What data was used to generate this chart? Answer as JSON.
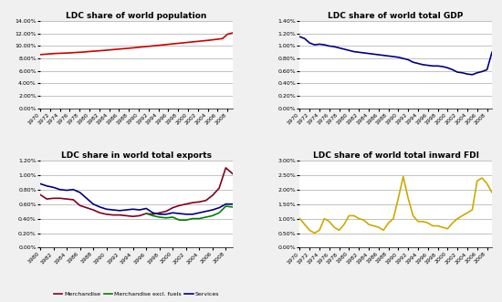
{
  "pop_years": [
    1970,
    1971,
    1972,
    1973,
    1974,
    1975,
    1976,
    1977,
    1978,
    1979,
    1980,
    1981,
    1982,
    1983,
    1984,
    1985,
    1986,
    1987,
    1988,
    1989,
    1990,
    1991,
    1992,
    1993,
    1994,
    1995,
    1996,
    1997,
    1998,
    1999,
    2000,
    2001,
    2002,
    2003,
    2004,
    2005,
    2006,
    2007,
    2008,
    2009
  ],
  "pop_values": [
    0.0862,
    0.0868,
    0.0874,
    0.088,
    0.0883,
    0.0886,
    0.089,
    0.0895,
    0.09,
    0.0905,
    0.0912,
    0.0918,
    0.0924,
    0.093,
    0.0937,
    0.0944,
    0.0951,
    0.0958,
    0.0965,
    0.0972,
    0.098,
    0.0988,
    0.0995,
    0.1003,
    0.1011,
    0.1019,
    0.1027,
    0.1035,
    0.1043,
    0.1051,
    0.1059,
    0.1067,
    0.1075,
    0.1083,
    0.1091,
    0.11,
    0.111,
    0.112,
    0.119,
    0.121
  ],
  "gdp_years": [
    1970,
    1971,
    1972,
    1973,
    1974,
    1975,
    1976,
    1977,
    1978,
    1979,
    1980,
    1981,
    1982,
    1983,
    1984,
    1985,
    1986,
    1987,
    1988,
    1989,
    1990,
    1991,
    1992,
    1993,
    1994,
    1995,
    1996,
    1997,
    1998,
    1999,
    2000,
    2001,
    2002,
    2003,
    2004,
    2005,
    2006,
    2007,
    2008,
    2009
  ],
  "gdp_values": [
    0.0115,
    0.0112,
    0.0105,
    0.0102,
    0.0103,
    0.0102,
    0.01,
    0.0099,
    0.0097,
    0.0095,
    0.0093,
    0.0091,
    0.009,
    0.0089,
    0.0088,
    0.0087,
    0.0086,
    0.0085,
    0.0084,
    0.0083,
    0.0082,
    0.008,
    0.0078,
    0.0074,
    0.0072,
    0.007,
    0.0069,
    0.0068,
    0.0068,
    0.0067,
    0.0065,
    0.0062,
    0.0058,
    0.0057,
    0.0055,
    0.0054,
    0.0057,
    0.0059,
    0.0062,
    0.009
  ],
  "exp_years": [
    1980,
    1981,
    1982,
    1983,
    1984,
    1985,
    1986,
    1987,
    1988,
    1989,
    1990,
    1991,
    1992,
    1993,
    1994,
    1995,
    1996,
    1997,
    1998,
    1999,
    2000,
    2001,
    2002,
    2003,
    2004,
    2005,
    2006,
    2007,
    2008,
    2009
  ],
  "exp_merch": [
    0.0073,
    0.0067,
    0.0068,
    0.0068,
    0.0067,
    0.0066,
    0.0058,
    0.0055,
    0.0052,
    0.0048,
    0.0046,
    0.0045,
    0.0045,
    0.0044,
    0.0043,
    0.0044,
    0.0047,
    0.0046,
    0.0048,
    0.005,
    0.0055,
    0.0058,
    0.006,
    0.0062,
    0.0063,
    0.0065,
    0.0072,
    0.0082,
    0.011,
    0.0102
  ],
  "exp_merch_excl": [
    null,
    null,
    null,
    null,
    null,
    null,
    null,
    null,
    null,
    null,
    null,
    null,
    null,
    null,
    null,
    null,
    0.0047,
    0.0044,
    0.0042,
    0.0041,
    0.0042,
    0.0038,
    0.0038,
    0.004,
    0.004,
    0.0042,
    0.0044,
    0.0048,
    0.0057,
    0.0056
  ],
  "exp_services": [
    0.0088,
    0.0085,
    0.0083,
    0.008,
    0.0079,
    0.008,
    0.0076,
    0.0068,
    0.006,
    0.0056,
    0.0053,
    0.0052,
    0.0051,
    0.0052,
    0.0053,
    0.0052,
    0.0054,
    0.0048,
    0.0046,
    0.0046,
    0.0048,
    0.0047,
    0.0046,
    0.0046,
    0.0048,
    0.005,
    0.0052,
    0.0055,
    0.006,
    0.006
  ],
  "fdi_years": [
    1970,
    1971,
    1972,
    1973,
    1974,
    1975,
    1976,
    1977,
    1978,
    1979,
    1980,
    1981,
    1982,
    1983,
    1984,
    1985,
    1986,
    1987,
    1988,
    1989,
    1990,
    1991,
    1992,
    1993,
    1994,
    1995,
    1996,
    1997,
    1998,
    1999,
    2000,
    2001,
    2002,
    2003,
    2004,
    2005,
    2006,
    2007,
    2008,
    2009
  ],
  "fdi_values": [
    0.01,
    0.008,
    0.006,
    0.005,
    0.006,
    0.01,
    0.009,
    0.007,
    0.006,
    0.008,
    0.011,
    0.011,
    0.01,
    0.0095,
    0.008,
    0.0075,
    0.007,
    0.006,
    0.0085,
    0.01,
    0.017,
    0.0245,
    0.017,
    0.011,
    0.009,
    0.009,
    0.0085,
    0.0075,
    0.0075,
    0.007,
    0.0065,
    0.0085,
    0.01,
    0.011,
    0.012,
    0.013,
    0.023,
    0.024,
    0.022,
    0.019
  ],
  "pop_color": "#cc0000",
  "gdp_color": "#000080",
  "exp_merch_color": "#800020",
  "exp_merch_excl_color": "#008000",
  "exp_services_color": "#000080",
  "fdi_color": "#ccaa00",
  "bg_color": "#f0f0f0",
  "plot_bg": "#ffffff",
  "title1": "LDC share of world population",
  "title2": "LDC share of world total GDP",
  "title3": "LDC share in world total exports",
  "title4": "LDC share of world total inward FDI",
  "legend3": [
    "Merchandise",
    "Merchandise excl. fuels",
    "Services"
  ],
  "pop_ylim": [
    0,
    0.14
  ],
  "pop_yticks": [
    0,
    0.02,
    0.04,
    0.06,
    0.08,
    0.1,
    0.12,
    0.14
  ],
  "gdp_ylim": [
    0,
    0.014
  ],
  "gdp_yticks": [
    0,
    0.002,
    0.004,
    0.006,
    0.008,
    0.01,
    0.012,
    0.014
  ],
  "exp_ylim": [
    0,
    0.012
  ],
  "exp_yticks": [
    0,
    0.002,
    0.004,
    0.006,
    0.008,
    0.01,
    0.012
  ],
  "fdi_ylim": [
    0,
    0.03
  ],
  "fdi_yticks": [
    0,
    0.005,
    0.01,
    0.015,
    0.02,
    0.025,
    0.03
  ]
}
